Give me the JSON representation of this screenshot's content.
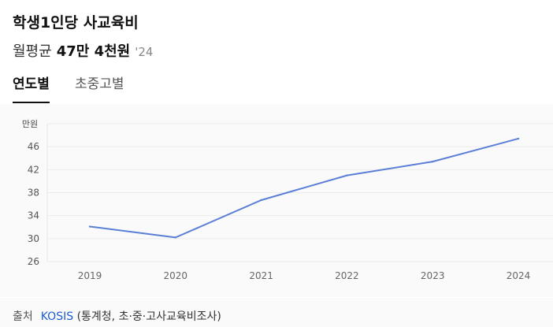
{
  "header": {
    "title": "학생1인당 사교육비",
    "subtitle_label": "월평균",
    "subtitle_value": "47만 4천원",
    "subtitle_year": "'24"
  },
  "tabs": [
    {
      "label": "연도별",
      "active": true
    },
    {
      "label": "초중고별",
      "active": false
    }
  ],
  "chart_data": {
    "type": "line",
    "unit_label": "만원",
    "x": [
      "2019",
      "2020",
      "2021",
      "2022",
      "2023",
      "2024"
    ],
    "series": [
      {
        "values": [
          32.1,
          30.2,
          36.7,
          41.0,
          43.4,
          47.4
        ]
      }
    ],
    "yticks": [
      26,
      30,
      34,
      38,
      42,
      46
    ],
    "ylim": [
      26,
      50
    ],
    "grid": true,
    "line_color": "#5b7fd6"
  },
  "footer": {
    "source_label": "출처",
    "source_link": "KOSIS",
    "source_detail": "(통계청, 초·중·고사교육비조사)"
  }
}
